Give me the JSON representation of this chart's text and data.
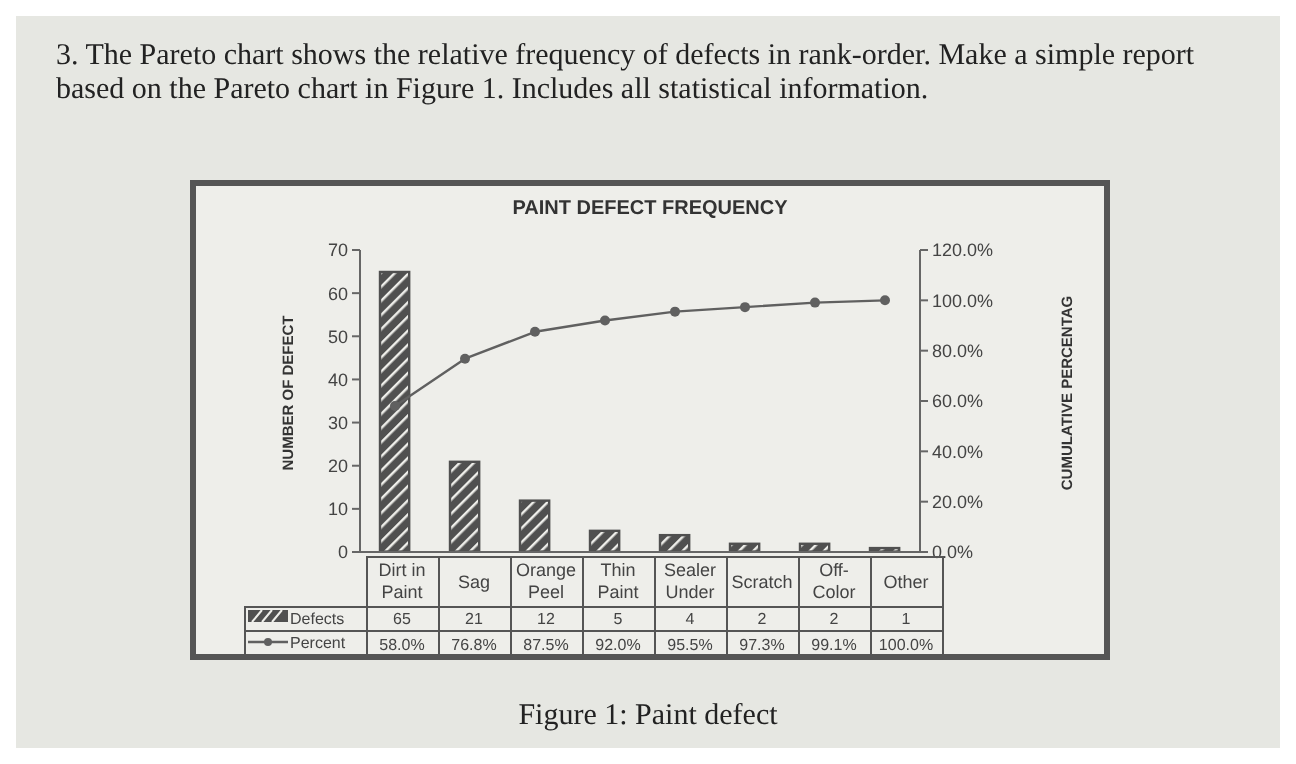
{
  "chart_data": {
    "type": "bar",
    "title": "PAINT DEFECT FREQUENCY",
    "annotations": [
      "3. The Pareto chart shows the relative frequency of defects in rank-order. Make a simple report based on the Pareto chart in Figure 1. Includes all statistical information.",
      "Figure 1: Paint defect"
    ],
    "categories": [
      "Dirt in Paint",
      "Sag",
      "Orange Peel",
      "Thin Paint",
      "Sealer Under",
      "Scratch",
      "Off-Color",
      "Other"
    ],
    "series": [
      {
        "name": "Defects",
        "color": "#505050",
        "values": [
          65,
          21,
          12,
          5,
          4,
          2,
          2,
          1
        ],
        "value_labels": [
          "65",
          "21",
          "12",
          "5",
          "4",
          "2",
          "2",
          "1"
        ]
      },
      {
        "name": "Percent",
        "type": "line",
        "axis": "y2",
        "color": "#606060",
        "values": [
          58.0,
          76.8,
          87.5,
          92.0,
          95.5,
          97.3,
          99.1,
          100.0
        ],
        "value_labels": [
          "58.0%",
          "76.8%",
          "87.5%",
          "92.0%",
          "95.5%",
          "97.3%",
          "99.1%",
          "100.0%"
        ]
      }
    ],
    "ylabel": "NUMBER OF DEFECT",
    "y2label": "CUMULATIVE PERCENTAG",
    "ylim": [
      0,
      70
    ],
    "yticks": [
      0,
      10,
      20,
      30,
      40,
      50,
      60,
      70
    ],
    "y2lim": [
      0,
      120
    ],
    "y2ticks": [
      {
        "value": 0,
        "label": "0.0%"
      },
      {
        "value": 20,
        "label": "20.0%"
      },
      {
        "value": 40,
        "label": "40.0%"
      },
      {
        "value": 60,
        "label": "60.0%"
      },
      {
        "value": 80,
        "label": "80.0%"
      },
      {
        "value": 100,
        "label": "100.0%"
      },
      {
        "value": 120,
        "label": "120.0%"
      }
    ],
    "grid": false,
    "legend": "bottom left",
    "marker": "circle",
    "line_style": "solid"
  }
}
